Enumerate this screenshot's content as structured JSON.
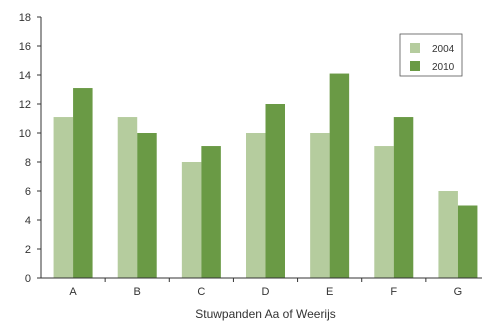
{
  "chart_data": {
    "type": "bar",
    "categories": [
      "A",
      "B",
      "C",
      "D",
      "E",
      "F",
      "G"
    ],
    "series": [
      {
        "name": "2004",
        "values": [
          11.1,
          11.1,
          8.0,
          10.0,
          10.0,
          9.1,
          6.0
        ],
        "color": "#b5cc9e"
      },
      {
        "name": "2010",
        "values": [
          13.1,
          10.0,
          9.1,
          12.0,
          14.1,
          11.1,
          5.0
        ],
        "color": "#6a9a45"
      }
    ],
    "title": "",
    "xlabel": "Stuwpanden Aa of Weerijs",
    "ylabel": "",
    "ylim": [
      0,
      18
    ],
    "yticks": [
      "0",
      "2",
      "4",
      "6",
      "8",
      "10",
      "12",
      "14",
      "16",
      "18"
    ],
    "grid": false,
    "legend_position": "top-right"
  }
}
